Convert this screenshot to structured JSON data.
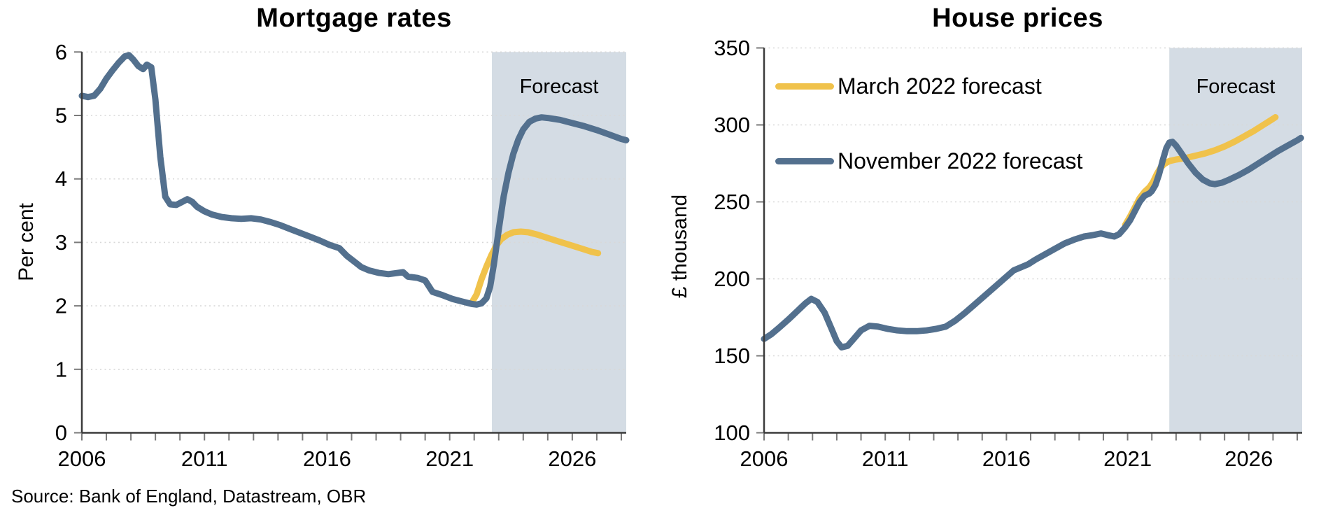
{
  "source_note": "Source: Bank of England, Datastream, OBR",
  "colors": {
    "march": "#F0C24B",
    "november": "#53708E",
    "forecast_band": "#D4DCE4",
    "gridline": "#D8D8D8",
    "axis": "#3B3B3B",
    "tick": "#7A7A7A",
    "text": "#000000"
  },
  "legend": {
    "items": [
      {
        "label": "March 2022 forecast",
        "series": "march"
      },
      {
        "label": "November 2022 forecast",
        "series": "november"
      }
    ]
  },
  "chart_data": [
    {
      "type": "line",
      "title": "Mortgage rates",
      "xlabel": "",
      "ylabel": "Per cent",
      "xlim": [
        2006,
        2028.2
      ],
      "ylim": [
        0,
        6
      ],
      "y_ticks": [
        0,
        1,
        2,
        3,
        4,
        5,
        6
      ],
      "x_tick_labels": [
        2006,
        2011,
        2016,
        2021,
        2026
      ],
      "x_minor_tick_step_years": 1,
      "grid": "dotted-horizontal",
      "legend_position": "none",
      "forecast": {
        "label": "Forecast",
        "start": 2022.72,
        "end": 2028.2
      },
      "series": [
        {
          "name": "March 2022 forecast",
          "key": "march",
          "points": [
            [
              2021.9,
              2.05
            ],
            [
              2022.1,
              2.18
            ],
            [
              2022.3,
              2.42
            ],
            [
              2022.5,
              2.62
            ],
            [
              2022.7,
              2.8
            ],
            [
              2022.9,
              2.95
            ],
            [
              2023.1,
              3.05
            ],
            [
              2023.35,
              3.12
            ],
            [
              2023.6,
              3.16
            ],
            [
              2023.9,
              3.17
            ],
            [
              2024.2,
              3.16
            ],
            [
              2024.6,
              3.12
            ],
            [
              2025.0,
              3.07
            ],
            [
              2025.4,
              3.02
            ],
            [
              2025.9,
              2.96
            ],
            [
              2026.4,
              2.9
            ],
            [
              2026.8,
              2.85
            ],
            [
              2027.05,
              2.83
            ]
          ]
        },
        {
          "name": "November 2022 forecast",
          "key": "november",
          "points": [
            [
              2006.0,
              5.31
            ],
            [
              2006.25,
              5.29
            ],
            [
              2006.5,
              5.31
            ],
            [
              2006.75,
              5.42
            ],
            [
              2007.0,
              5.58
            ],
            [
              2007.25,
              5.71
            ],
            [
              2007.5,
              5.83
            ],
            [
              2007.75,
              5.93
            ],
            [
              2007.92,
              5.95
            ],
            [
              2008.1,
              5.88
            ],
            [
              2008.3,
              5.78
            ],
            [
              2008.5,
              5.73
            ],
            [
              2008.65,
              5.8
            ],
            [
              2008.83,
              5.76
            ],
            [
              2009.0,
              5.25
            ],
            [
              2009.2,
              4.35
            ],
            [
              2009.4,
              3.72
            ],
            [
              2009.6,
              3.6
            ],
            [
              2009.85,
              3.59
            ],
            [
              2010.1,
              3.64
            ],
            [
              2010.3,
              3.68
            ],
            [
              2010.5,
              3.64
            ],
            [
              2010.7,
              3.56
            ],
            [
              2011.0,
              3.49
            ],
            [
              2011.3,
              3.44
            ],
            [
              2011.7,
              3.4
            ],
            [
              2012.1,
              3.38
            ],
            [
              2012.5,
              3.37
            ],
            [
              2012.9,
              3.38
            ],
            [
              2013.3,
              3.36
            ],
            [
              2013.7,
              3.32
            ],
            [
              2014.1,
              3.27
            ],
            [
              2014.5,
              3.21
            ],
            [
              2014.9,
              3.15
            ],
            [
              2015.3,
              3.09
            ],
            [
              2015.7,
              3.03
            ],
            [
              2016.1,
              2.96
            ],
            [
              2016.5,
              2.91
            ],
            [
              2016.8,
              2.79
            ],
            [
              2017.1,
              2.7
            ],
            [
              2017.4,
              2.61
            ],
            [
              2017.7,
              2.56
            ],
            [
              2018.1,
              2.52
            ],
            [
              2018.5,
              2.5
            ],
            [
              2018.9,
              2.52
            ],
            [
              2019.1,
              2.53
            ],
            [
              2019.3,
              2.46
            ],
            [
              2019.7,
              2.44
            ],
            [
              2020.0,
              2.4
            ],
            [
              2020.3,
              2.22
            ],
            [
              2020.7,
              2.17
            ],
            [
              2021.1,
              2.11
            ],
            [
              2021.5,
              2.07
            ],
            [
              2021.9,
              2.03
            ],
            [
              2022.1,
              2.02
            ],
            [
              2022.3,
              2.04
            ],
            [
              2022.5,
              2.12
            ],
            [
              2022.65,
              2.3
            ],
            [
              2022.8,
              2.65
            ],
            [
              2023.0,
              3.2
            ],
            [
              2023.2,
              3.72
            ],
            [
              2023.4,
              4.1
            ],
            [
              2023.6,
              4.4
            ],
            [
              2023.8,
              4.62
            ],
            [
              2024.0,
              4.78
            ],
            [
              2024.25,
              4.9
            ],
            [
              2024.5,
              4.95
            ],
            [
              2024.75,
              4.97
            ],
            [
              2025.0,
              4.96
            ],
            [
              2025.5,
              4.93
            ],
            [
              2026.0,
              4.88
            ],
            [
              2026.5,
              4.83
            ],
            [
              2027.0,
              4.77
            ],
            [
              2027.5,
              4.7
            ],
            [
              2028.0,
              4.63
            ],
            [
              2028.2,
              4.61
            ]
          ]
        }
      ]
    },
    {
      "type": "line",
      "title": "House prices",
      "xlabel": "",
      "ylabel": "£ thousand",
      "xlim": [
        2006,
        2028.2
      ],
      "ylim": [
        100,
        350
      ],
      "y_ticks": [
        100,
        150,
        200,
        250,
        300,
        350
      ],
      "x_tick_labels": [
        2006,
        2011,
        2016,
        2021,
        2026
      ],
      "x_minor_tick_step_years": 1,
      "grid": "dotted-horizontal",
      "legend_position": "upper-left",
      "forecast": {
        "label": "Forecast",
        "start": 2022.72,
        "end": 2028.2
      },
      "series": [
        {
          "name": "March 2022 forecast",
          "key": "march",
          "points": [
            [
              2020.9,
              235
            ],
            [
              2021.1,
              240.5
            ],
            [
              2021.3,
              246.5
            ],
            [
              2021.5,
              252.5
            ],
            [
              2021.7,
              256.5
            ],
            [
              2021.9,
              259.5
            ],
            [
              2022.05,
              263
            ],
            [
              2022.2,
              268
            ],
            [
              2022.35,
              272
            ],
            [
              2022.5,
              274.5
            ],
            [
              2022.72,
              276.5
            ],
            [
              2023.0,
              277.5
            ],
            [
              2023.4,
              278.5
            ],
            [
              2023.8,
              280
            ],
            [
              2024.2,
              281.5
            ],
            [
              2024.6,
              283.5
            ],
            [
              2025.0,
              286
            ],
            [
              2025.4,
              289
            ],
            [
              2025.8,
              292.5
            ],
            [
              2026.2,
              296
            ],
            [
              2026.6,
              300
            ],
            [
              2026.9,
              303
            ],
            [
              2027.1,
              305
            ]
          ]
        },
        {
          "name": "November 2022 forecast",
          "key": "november",
          "points": [
            [
              2006.0,
              161
            ],
            [
              2006.3,
              164
            ],
            [
              2006.6,
              168
            ],
            [
              2007.0,
              173.5
            ],
            [
              2007.4,
              179.5
            ],
            [
              2007.7,
              184
            ],
            [
              2007.95,
              187
            ],
            [
              2008.2,
              185
            ],
            [
              2008.5,
              178
            ],
            [
              2008.8,
              167
            ],
            [
              2009.0,
              159.5
            ],
            [
              2009.2,
              155.5
            ],
            [
              2009.45,
              156.5
            ],
            [
              2009.7,
              161
            ],
            [
              2010.0,
              166.5
            ],
            [
              2010.35,
              169.5
            ],
            [
              2010.7,
              169
            ],
            [
              2011.1,
              167.5
            ],
            [
              2011.5,
              166.5
            ],
            [
              2011.9,
              166
            ],
            [
              2012.3,
              166
            ],
            [
              2012.7,
              166.5
            ],
            [
              2013.1,
              167.5
            ],
            [
              2013.5,
              169
            ],
            [
              2013.9,
              173
            ],
            [
              2014.3,
              178
            ],
            [
              2014.7,
              183.5
            ],
            [
              2015.1,
              189
            ],
            [
              2015.5,
              194.5
            ],
            [
              2015.9,
              200
            ],
            [
              2016.3,
              205.5
            ],
            [
              2016.6,
              207.5
            ],
            [
              2016.9,
              209.5
            ],
            [
              2017.2,
              212.5
            ],
            [
              2017.6,
              216
            ],
            [
              2018.0,
              219.5
            ],
            [
              2018.4,
              223
            ],
            [
              2018.8,
              225.5
            ],
            [
              2019.2,
              227.5
            ],
            [
              2019.6,
              228.5
            ],
            [
              2019.9,
              229.5
            ],
            [
              2020.15,
              228.5
            ],
            [
              2020.45,
              227.5
            ],
            [
              2020.65,
              229
            ],
            [
              2020.9,
              233.5
            ],
            [
              2021.1,
              238
            ],
            [
              2021.3,
              244
            ],
            [
              2021.5,
              250
            ],
            [
              2021.7,
              254
            ],
            [
              2021.9,
              255.5
            ],
            [
              2022.0,
              257
            ],
            [
              2022.15,
              261
            ],
            [
              2022.3,
              268
            ],
            [
              2022.45,
              277
            ],
            [
              2022.6,
              285
            ],
            [
              2022.72,
              288.5
            ],
            [
              2022.85,
              289
            ],
            [
              2023.0,
              286.5
            ],
            [
              2023.2,
              282
            ],
            [
              2023.5,
              275
            ],
            [
              2023.8,
              269
            ],
            [
              2024.1,
              264.5
            ],
            [
              2024.4,
              262
            ],
            [
              2024.6,
              261.5
            ],
            [
              2024.9,
              262.5
            ],
            [
              2025.2,
              264.5
            ],
            [
              2025.6,
              267.5
            ],
            [
              2026.0,
              271
            ],
            [
              2026.4,
              275
            ],
            [
              2026.8,
              279
            ],
            [
              2027.2,
              283
            ],
            [
              2027.6,
              286.5
            ],
            [
              2028.0,
              290
            ],
            [
              2028.15,
              291.5
            ]
          ]
        }
      ]
    }
  ]
}
